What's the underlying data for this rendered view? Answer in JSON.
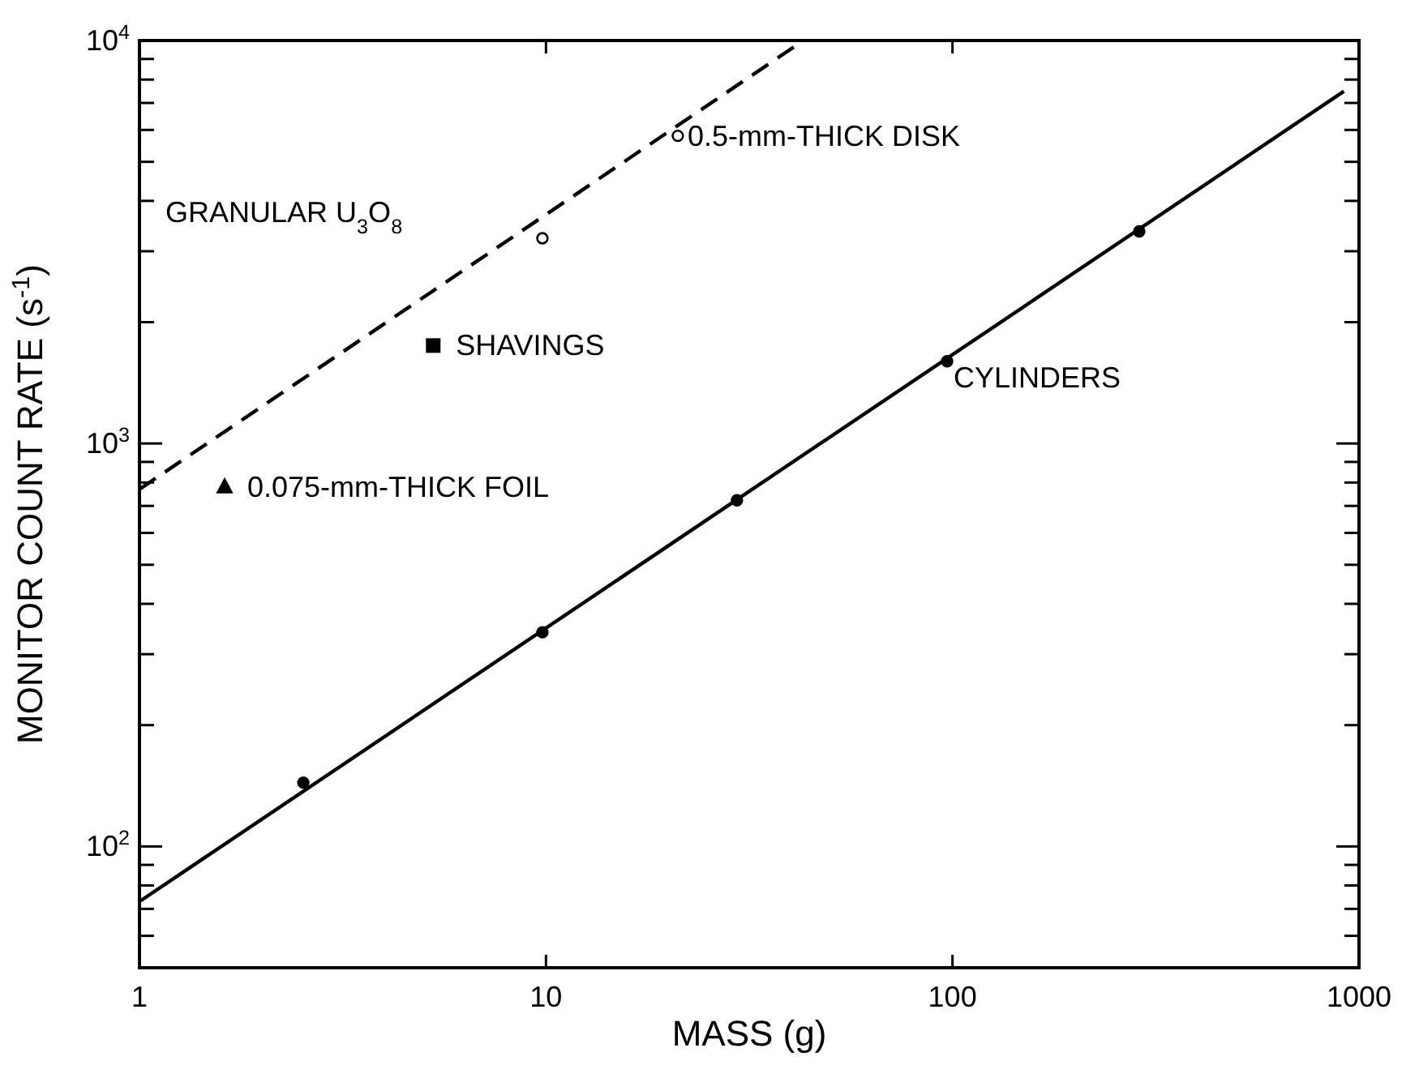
{
  "chart_data": {
    "type": "scatter",
    "xlabel": "MASS (g)",
    "ylabel": "MONITOR COUNT RATE (s$^{-1}$)",
    "log": "xy",
    "grid": false,
    "xlim": [
      1,
      1000
    ],
    "xticks": [
      1,
      10,
      100,
      1000
    ],
    "ylim": [
      50,
      10000
    ],
    "yticks": [
      {
        "value": 60,
        "label": null
      },
      {
        "value": 70,
        "label": null
      },
      {
        "value": 80,
        "label": null
      },
      {
        "value": 90,
        "label": null
      },
      {
        "value": 100,
        "label": "10$^{2}$"
      },
      {
        "value": 200,
        "label": null
      },
      {
        "value": 300,
        "label": null
      },
      {
        "value": 400,
        "label": null
      },
      {
        "value": 500,
        "label": null
      },
      {
        "value": 600,
        "label": null
      },
      {
        "value": 700,
        "label": null
      },
      {
        "value": 800,
        "label": null
      },
      {
        "value": 900,
        "label": null
      },
      {
        "value": 1000,
        "label": "10$^{3}$"
      },
      {
        "value": 2000,
        "label": null
      },
      {
        "value": 3000,
        "label": null
      },
      {
        "value": 4000,
        "label": null
      },
      {
        "value": 5000,
        "label": null
      },
      {
        "value": 6000,
        "label": null
      },
      {
        "value": 7000,
        "label": null
      },
      {
        "value": 8000,
        "label": null
      },
      {
        "value": 9000,
        "label": null
      },
      {
        "value": 10000,
        "label": "10$^{4}$"
      }
    ],
    "series": [
      {
        "name": "CYLINDERS",
        "type": "scatter",
        "marker": "circle",
        "color": "#000000",
        "x": [
          2.53,
          9.8,
          29.5,
          97,
          288
        ],
        "values": [
          144,
          340,
          723,
          1600,
          3360
        ]
      },
      {
        "type": "line",
        "color": "#000000",
        "line_style": "solid",
        "marker": "none",
        "x": [
          1,
          918
        ],
        "values": [
          73,
          7480
        ]
      },
      {
        "name": "GRANULAR U$_{3}$O$_{8}$",
        "type": "line",
        "color": "#000000",
        "line_style": "dashed",
        "marker": "none",
        "x": [
          1,
          43
        ],
        "values": [
          770,
          10000
        ]
      },
      {
        "name": "0.5-mm-THICK DISK",
        "type": "scatter",
        "marker": "circle",
        "color": "#ffffff",
        "x": [
          9.8,
          21.1
        ],
        "values": [
          3230,
          5800
        ]
      },
      {
        "name": "SHAVINGS",
        "type": "scatter",
        "marker": "square",
        "color": "#000000",
        "x": [
          5.28
        ],
        "values": [
          1750
        ]
      },
      {
        "name": "0.075-mm-THICK FOIL",
        "type": "scatter",
        "marker": "triangle",
        "color": "#000000",
        "x": [
          1.62
        ],
        "values": [
          780
        ]
      }
    ]
  }
}
